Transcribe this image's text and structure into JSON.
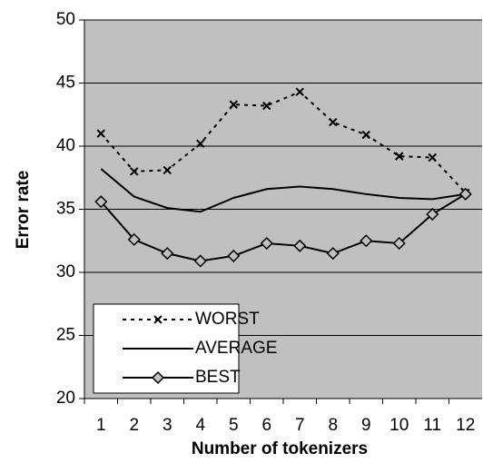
{
  "chart_data": {
    "type": "line",
    "x_label": "Number of tokenizers",
    "y_label": "Error rate",
    "categories": [
      "1",
      "2",
      "3",
      "4",
      "5",
      "6",
      "7",
      "8",
      "9",
      "10",
      "11",
      "12"
    ],
    "series": [
      {
        "name": "WORST",
        "color": "#000000",
        "dash": true,
        "marker": "x",
        "values": [
          41.0,
          38.0,
          38.1,
          40.2,
          43.3,
          43.2,
          44.3,
          41.9,
          40.9,
          39.2,
          39.1,
          36.3
        ]
      },
      {
        "name": "AVERAGE",
        "color": "#000000",
        "dash": false,
        "values": [
          38.2,
          36.0,
          35.1,
          34.8,
          35.9,
          36.6,
          36.8,
          36.6,
          36.2,
          35.9,
          35.8,
          36.2
        ]
      },
      {
        "name": "BEST",
        "color": "#000000",
        "dash": false,
        "marker": "diamond",
        "values": [
          35.6,
          32.6,
          31.5,
          30.9,
          31.3,
          32.3,
          32.1,
          31.5,
          32.5,
          32.3,
          34.6,
          36.2
        ]
      }
    ],
    "ylim": [
      20,
      50
    ],
    "yticks": [
      20,
      25,
      30,
      35,
      40,
      45,
      50
    ],
    "grid": true,
    "background": "#c0c0c0",
    "legend_position": "lower left"
  }
}
